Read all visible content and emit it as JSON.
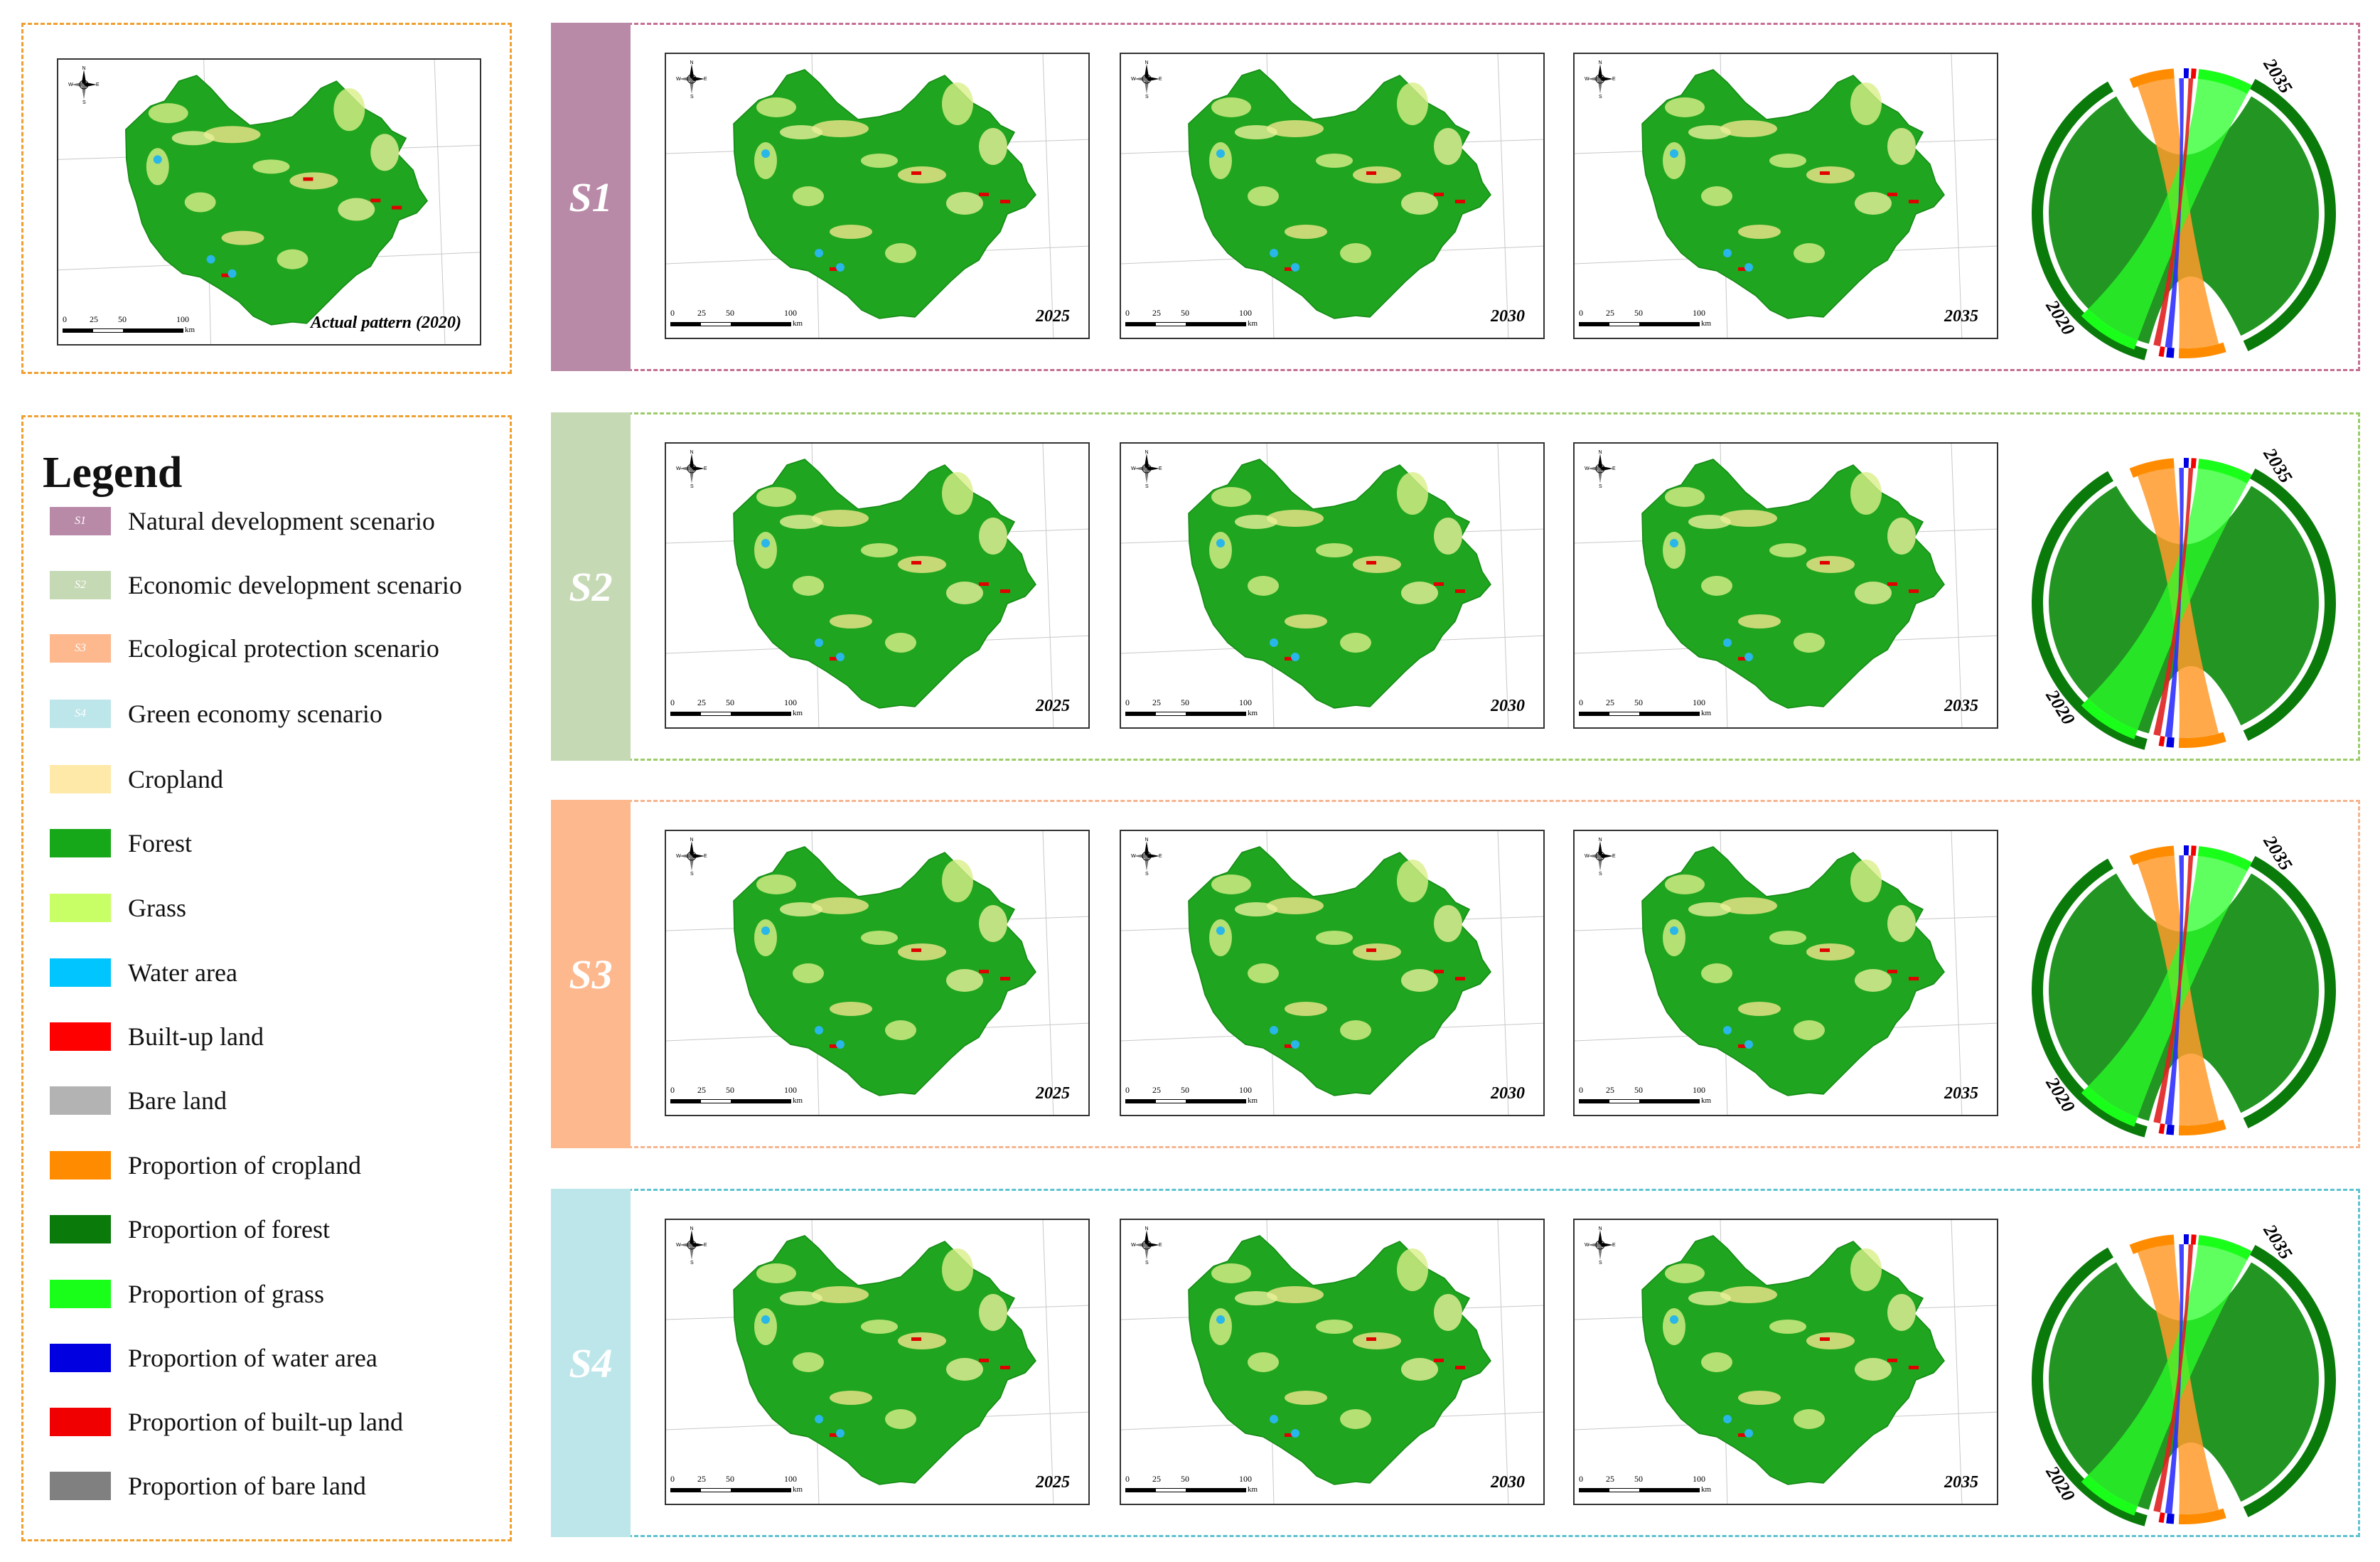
{
  "actual": {
    "label": "Actual pattern (2020)"
  },
  "legend": {
    "title": "Legend",
    "items": [
      {
        "swatch_text": "S1",
        "label": "Natural development scenario",
        "color": "#b98aa8"
      },
      {
        "swatch_text": "S2",
        "label": "Economic development scenario",
        "color": "#c6d9b5"
      },
      {
        "swatch_text": "S3",
        "label": "Ecological protection scenario",
        "color": "#fdb88e"
      },
      {
        "swatch_text": "S4",
        "label": "Green economy scenario",
        "color": "#bde6ea"
      },
      {
        "swatch_text": "",
        "label": "Cropland",
        "color": "#ffe9a8"
      },
      {
        "swatch_text": "",
        "label": "Forest",
        "color": "#16a818"
      },
      {
        "swatch_text": "",
        "label": "Grass",
        "color": "#c8ff66"
      },
      {
        "swatch_text": "",
        "label": "Water area",
        "color": "#00c5ff"
      },
      {
        "swatch_text": "",
        "label": "Built-up land",
        "color": "#ff0000"
      },
      {
        "swatch_text": "",
        "label": "Bare land",
        "color": "#b3b3b3"
      },
      {
        "swatch_text": "",
        "label": "Proportion of cropland",
        "color": "#ff8c00"
      },
      {
        "swatch_text": "",
        "label": "Proportion of forest",
        "color": "#0a7a0a"
      },
      {
        "swatch_text": "",
        "label": "Proportion of grass",
        "color": "#1aff1a"
      },
      {
        "swatch_text": "",
        "label": "Proportion of water area",
        "color": "#0000e0"
      },
      {
        "swatch_text": "",
        "label": "Proportion of built-up land",
        "color": "#f00000"
      },
      {
        "swatch_text": "",
        "label": "Proportion of bare land",
        "color": "#808080"
      }
    ]
  },
  "scenarios": [
    {
      "name": "S1",
      "color": "#b98aa8",
      "border": "#c46f93",
      "years": [
        "2025",
        "2030",
        "2035"
      ],
      "chord_from": "2020",
      "chord_to": "2035"
    },
    {
      "name": "S2",
      "color": "#c6d9b5",
      "border": "#9ccc6a",
      "years": [
        "2025",
        "2030",
        "2035"
      ],
      "chord_from": "2020",
      "chord_to": "2035"
    },
    {
      "name": "S3",
      "color": "#fdb88e",
      "border": "#f5b58f",
      "years": [
        "2025",
        "2030",
        "2035"
      ],
      "chord_from": "2020",
      "chord_to": "2035"
    },
    {
      "name": "S4",
      "color": "#bde6ea",
      "border": "#5fc3cf",
      "years": [
        "2025",
        "2030",
        "2035"
      ],
      "chord_from": "2020",
      "chord_to": "2035"
    }
  ],
  "scalebar": {
    "ticks": [
      "0",
      "25",
      "50",
      "100"
    ],
    "unit": "km"
  },
  "compass": {
    "n": "N",
    "s": "S",
    "e": "E",
    "w": "W"
  }
}
